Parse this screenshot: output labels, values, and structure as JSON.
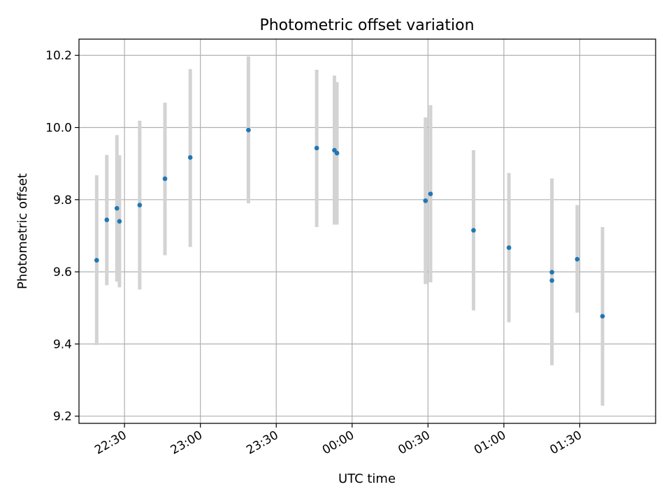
{
  "chart_data": {
    "type": "scatter",
    "title": "Photometric offset variation",
    "xlabel": "UTC time",
    "ylabel": "Photometric offset",
    "xlim": [
      "22:12",
      "02:00"
    ],
    "ylim": [
      9.18,
      10.245
    ],
    "grid": true,
    "x_ticks": [
      "22:30",
      "23:00",
      "23:30",
      "00:00",
      "00:30",
      "01:00",
      "01:30"
    ],
    "y_ticks": [
      "9.2",
      "9.4",
      "9.6",
      "9.8",
      "10.0",
      "10.2"
    ],
    "colors": {
      "points": "#1f77b4",
      "error_bars": "#d3d3d3",
      "grid": "#b0b0b0"
    },
    "series": [
      {
        "points": [
          {
            "x": "22:19",
            "y": 9.632,
            "y_low": 9.397,
            "y_high": 9.868
          },
          {
            "x": "22:23",
            "y": 9.744,
            "y_low": 9.563,
            "y_high": 9.924
          },
          {
            "x": "22:27",
            "y": 9.776,
            "y_low": 9.573,
            "y_high": 9.979
          },
          {
            "x": "22:28",
            "y": 9.74,
            "y_low": 9.557,
            "y_high": 9.923
          },
          {
            "x": "22:36",
            "y": 9.785,
            "y_low": 9.551,
            "y_high": 10.019
          },
          {
            "x": "22:46",
            "y": 9.858,
            "y_low": 9.646,
            "y_high": 10.069
          },
          {
            "x": "22:56",
            "y": 9.917,
            "y_low": 9.669,
            "y_high": 10.162
          },
          {
            "x": "23:19",
            "y": 9.993,
            "y_low": 9.79,
            "y_high": 10.197
          },
          {
            "x": "23:46",
            "y": 9.943,
            "y_low": 9.724,
            "y_high": 10.16
          },
          {
            "x": "23:53",
            "y": 9.937,
            "y_low": 9.731,
            "y_high": 10.144
          },
          {
            "x": "23:54",
            "y": 9.929,
            "y_low": 9.731,
            "y_high": 10.126
          },
          {
            "x": "00:29",
            "y": 9.797,
            "y_low": 9.566,
            "y_high": 10.028
          },
          {
            "x": "00:31",
            "y": 9.816,
            "y_low": 9.571,
            "y_high": 10.062
          },
          {
            "x": "00:48",
            "y": 9.715,
            "y_low": 9.493,
            "y_high": 9.937
          },
          {
            "x": "01:02",
            "y": 9.667,
            "y_low": 9.46,
            "y_high": 9.874
          },
          {
            "x": "01:19",
            "y": 9.576,
            "y_low": 9.353,
            "y_high": 9.859
          },
          {
            "x": "01:19",
            "y": 9.599,
            "y_low": 9.341,
            "y_high": 9.858
          },
          {
            "x": "01:29",
            "y": 9.635,
            "y_low": 9.487,
            "y_high": 9.785
          },
          {
            "x": "01:39",
            "y": 9.477,
            "y_low": 9.229,
            "y_high": 9.724
          }
        ]
      }
    ]
  }
}
